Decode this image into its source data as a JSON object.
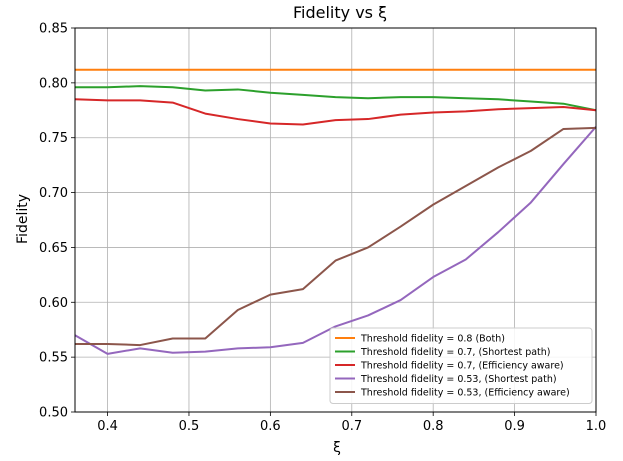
{
  "chart_data": {
    "type": "line",
    "title": "Fidelity vs ξ",
    "xlabel": "ξ",
    "ylabel": "Fidelity",
    "xlim": [
      0.36,
      1.0
    ],
    "ylim": [
      0.5,
      0.85
    ],
    "xticks": [
      0.4,
      0.5,
      0.6,
      0.7,
      0.8,
      0.9,
      1.0
    ],
    "xtick_labels": [
      "0.4",
      "0.5",
      "0.6",
      "0.7",
      "0.8",
      "0.9",
      "1.0"
    ],
    "yticks": [
      0.5,
      0.55,
      0.6,
      0.65,
      0.7,
      0.75,
      0.8,
      0.85
    ],
    "ytick_labels": [
      "0.50",
      "0.55",
      "0.60",
      "0.65",
      "0.70",
      "0.75",
      "0.80",
      "0.85"
    ],
    "grid": true,
    "legend_position": "lower-right",
    "x": [
      0.36,
      0.4,
      0.44,
      0.48,
      0.52,
      0.56,
      0.6,
      0.64,
      0.68,
      0.72,
      0.76,
      0.8,
      0.84,
      0.88,
      0.92,
      0.96,
      1.0
    ],
    "series": [
      {
        "name": "Threshold fidelity = 0.8 (Both)",
        "color": "#ff7f0e",
        "values": [
          0.812,
          0.812,
          0.812,
          0.812,
          0.812,
          0.812,
          0.812,
          0.812,
          0.812,
          0.812,
          0.812,
          0.812,
          0.812,
          0.812,
          0.812,
          0.812,
          0.812
        ]
      },
      {
        "name": "Threshold fidelity = 0.7, (Shortest path)",
        "color": "#2ca02c",
        "values": [
          0.796,
          0.796,
          0.797,
          0.796,
          0.793,
          0.794,
          0.791,
          0.789,
          0.787,
          0.786,
          0.787,
          0.787,
          0.786,
          0.785,
          0.783,
          0.781,
          0.775
        ]
      },
      {
        "name": "Threshold fidelity = 0.7, (Efficiency aware)",
        "color": "#d62728",
        "values": [
          0.785,
          0.784,
          0.784,
          0.782,
          0.772,
          0.767,
          0.763,
          0.762,
          0.766,
          0.767,
          0.771,
          0.773,
          0.774,
          0.776,
          0.777,
          0.778,
          0.775
        ]
      },
      {
        "name": "Threshold fidelity = 0.53, (Shortest path)",
        "color": "#9467bd",
        "values": [
          0.57,
          0.553,
          0.558,
          0.554,
          0.555,
          0.558,
          0.559,
          0.563,
          0.578,
          0.588,
          0.602,
          0.623,
          0.639,
          0.664,
          0.691,
          0.726,
          0.76
        ]
      },
      {
        "name": "Threshold fidelity = 0.53, (Efficiency aware)",
        "color": "#8c564b",
        "values": [
          0.562,
          0.562,
          0.561,
          0.567,
          0.567,
          0.593,
          0.607,
          0.612,
          0.638,
          0.65,
          0.669,
          0.689,
          0.706,
          0.723,
          0.738,
          0.758,
          0.759
        ]
      }
    ]
  }
}
